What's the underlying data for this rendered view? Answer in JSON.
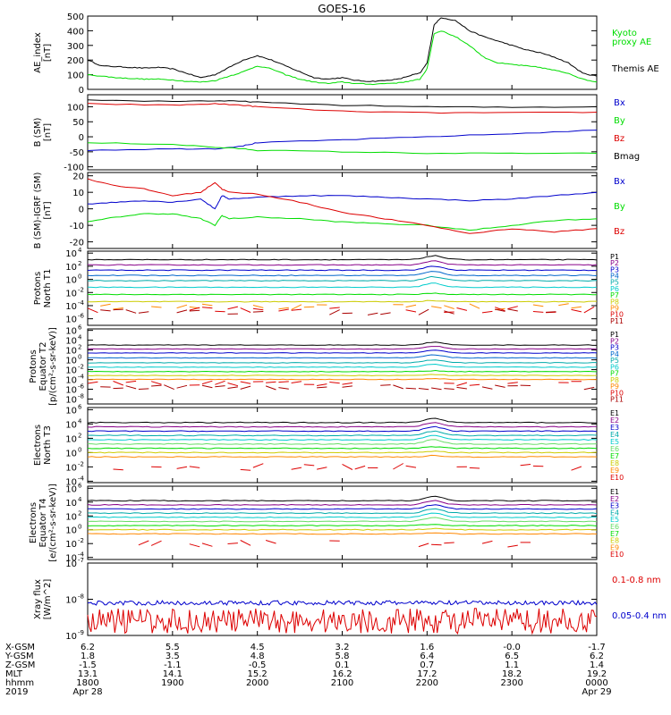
{
  "title": "GOES-16",
  "colors": {
    "black": "#000000",
    "green": "#00dd00",
    "blue": "#0000cc",
    "red": "#dd0000",
    "purple": "#880088",
    "cyan": "#00cccc",
    "yellow": "#cccc00",
    "orange": "#ff8800",
    "lightgreen": "#66dd66",
    "teal": "#00aaaa"
  },
  "chart_data": [
    {
      "type": "line",
      "ylabel": "AE_index [nT]",
      "ylabel_lines": [
        "AE_index",
        "[nT]"
      ],
      "ylim": [
        0,
        500
      ],
      "yticks": [
        0,
        100,
        200,
        300,
        400,
        500
      ],
      "ytick_labels": [
        "0",
        "100",
        "200",
        "300",
        "400",
        "500"
      ],
      "series": [
        {
          "name": "Themis AE",
          "color": "#000000",
          "x": [
            1800,
            1810,
            1820,
            1830,
            1840,
            1850,
            1900,
            1910,
            1920,
            1930,
            1940,
            1950,
            2000,
            2010,
            2020,
            2030,
            2040,
            2050,
            2100,
            2110,
            2120,
            2130,
            2140,
            2150,
            2155,
            2200,
            2205,
            2210,
            2220,
            2230,
            2240,
            2250,
            2300,
            2310,
            2320,
            2330,
            2340,
            2350,
            2400
          ],
          "values": [
            200,
            160,
            155,
            150,
            145,
            150,
            140,
            110,
            80,
            100,
            150,
            200,
            230,
            200,
            160,
            120,
            80,
            70,
            80,
            60,
            55,
            60,
            70,
            100,
            110,
            180,
            440,
            490,
            470,
            400,
            360,
            330,
            300,
            270,
            250,
            220,
            180,
            110,
            90
          ]
        },
        {
          "name": "Kyoto proxy AE",
          "color": "#00dd00",
          "x": [
            1800,
            1810,
            1820,
            1830,
            1840,
            1850,
            1900,
            1910,
            1920,
            1930,
            1940,
            1950,
            2000,
            2010,
            2020,
            2030,
            2040,
            2050,
            2100,
            2110,
            2120,
            2130,
            2140,
            2150,
            2155,
            2200,
            2205,
            2210,
            2220,
            2230,
            2240,
            2250,
            2300,
            2310,
            2320,
            2330,
            2340,
            2350,
            2400
          ],
          "values": [
            100,
            90,
            80,
            75,
            70,
            70,
            65,
            55,
            50,
            60,
            90,
            120,
            160,
            140,
            100,
            70,
            50,
            40,
            50,
            40,
            35,
            40,
            45,
            60,
            70,
            140,
            380,
            400,
            360,
            300,
            220,
            180,
            170,
            160,
            150,
            130,
            110,
            70,
            50
          ]
        }
      ],
      "legend": [
        {
          "text": "Kyoto",
          "color": "#00dd00"
        },
        {
          "text": "proxy AE",
          "color": "#00dd00"
        },
        {
          "text": "Themis AE",
          "color": "#000000"
        }
      ]
    },
    {
      "type": "line",
      "ylabel": "B (SM) [nT]",
      "ylabel_lines": [
        "B (SM)",
        "[nT]"
      ],
      "ylim": [
        -110,
        140
      ],
      "yticks": [
        -100,
        -50,
        0,
        50,
        100
      ],
      "ytick_labels": [
        "-100",
        "-50",
        "0",
        "50",
        "100"
      ],
      "series": [
        {
          "name": "Bx",
          "color": "#0000cc",
          "x": [
            1800,
            1900,
            1930,
            1950,
            2000,
            2100,
            2200,
            2300,
            2400
          ],
          "values": [
            -45,
            -40,
            -40,
            -30,
            -20,
            -10,
            0,
            10,
            22
          ]
        },
        {
          "name": "By",
          "color": "#00dd00",
          "x": [
            1800,
            1900,
            1930,
            1950,
            2000,
            2100,
            2200,
            2300,
            2400
          ],
          "values": [
            -20,
            -25,
            -35,
            -40,
            -45,
            -50,
            -55,
            -55,
            -55
          ]
        },
        {
          "name": "Bz",
          "color": "#dd0000",
          "x": [
            1800,
            1900,
            1930,
            1950,
            2000,
            2100,
            2200,
            2300,
            2400
          ],
          "values": [
            110,
            105,
            110,
            105,
            100,
            85,
            80,
            80,
            82
          ]
        },
        {
          "name": "Bmag",
          "color": "#000000",
          "x": [
            1800,
            1900,
            1930,
            1950,
            2000,
            2100,
            2200,
            2300,
            2400
          ],
          "values": [
            122,
            118,
            120,
            118,
            115,
            105,
            100,
            98,
            100
          ]
        }
      ],
      "legend": [
        {
          "text": "Bx",
          "color": "#0000cc"
        },
        {
          "text": "By",
          "color": "#00dd00"
        },
        {
          "text": "Bz",
          "color": "#dd0000"
        },
        {
          "text": "Bmag",
          "color": "#000000"
        }
      ]
    },
    {
      "type": "line",
      "ylabel": "B (SM)-IGRF (SM) [nT]",
      "ylabel_lines": [
        "B (SM)-IGRF (SM)",
        "[nT]"
      ],
      "ylim": [
        -24,
        22
      ],
      "yticks": [
        -20,
        -10,
        0,
        10,
        20
      ],
      "ytick_labels": [
        "-20",
        "-10",
        "0",
        "10",
        "20"
      ],
      "series": [
        {
          "name": "Bx",
          "color": "#0000cc",
          "x": [
            1800,
            1820,
            1840,
            1900,
            1920,
            1930,
            1935,
            1940,
            2000,
            2030,
            2100,
            2130,
            2200,
            2230,
            2300,
            2330,
            2400
          ],
          "values": [
            3,
            4,
            5,
            4,
            6,
            0,
            8,
            6,
            7,
            8,
            8,
            7,
            6,
            5,
            6,
            8,
            10
          ]
        },
        {
          "name": "By",
          "color": "#00dd00",
          "x": [
            1800,
            1820,
            1840,
            1900,
            1920,
            1930,
            1935,
            1940,
            2000,
            2030,
            2100,
            2130,
            2200,
            2230,
            2300,
            2330,
            2400
          ],
          "values": [
            -8,
            -5,
            -3,
            -3,
            -6,
            -10,
            -4,
            -6,
            -5,
            -6,
            -8,
            -9,
            -10,
            -13,
            -10,
            -7,
            -6
          ]
        },
        {
          "name": "Bz",
          "color": "#dd0000",
          "x": [
            1800,
            1820,
            1840,
            1900,
            1920,
            1930,
            1935,
            1940,
            2000,
            2030,
            2100,
            2130,
            2200,
            2230,
            2300,
            2330,
            2400
          ],
          "values": [
            18,
            14,
            12,
            8,
            10,
            16,
            12,
            10,
            9,
            4,
            -2,
            -6,
            -10,
            -15,
            -12,
            -14,
            -12
          ]
        }
      ],
      "legend": [
        {
          "text": "Bx",
          "color": "#0000cc"
        },
        {
          "text": "By",
          "color": "#00dd00"
        },
        {
          "text": "Bz",
          "color": "#dd0000"
        }
      ]
    },
    {
      "type": "line",
      "scale": "log",
      "ylabel": "Protons North T1",
      "ylabel_lines": [
        "Protons",
        "North T1"
      ],
      "ylim_exp": [
        -7,
        4.3
      ],
      "yticks_exp": [
        -6,
        -4,
        -2,
        0,
        2,
        4
      ],
      "ytick_labels": [
        "10",
        "10",
        "10",
        "10",
        "10",
        "10"
      ],
      "ytick_exps": [
        "-6",
        "-4",
        "-2",
        "0",
        "2",
        "4"
      ],
      "channels": [
        {
          "name": "P1",
          "color": "#000000",
          "level_exp": 3.0
        },
        {
          "name": "P2",
          "color": "#880088",
          "level_exp": 2.2
        },
        {
          "name": "P3",
          "color": "#0000cc",
          "level_exp": 1.4
        },
        {
          "name": "P4",
          "color": "#0066cc",
          "level_exp": 0.6
        },
        {
          "name": "P5",
          "color": "#00aaaa",
          "level_exp": -0.2
        },
        {
          "name": "P6",
          "color": "#00cccc",
          "level_exp": -1.2
        },
        {
          "name": "P7",
          "color": "#00dd00",
          "level_exp": -2.3
        },
        {
          "name": "P8",
          "color": "#cccc00",
          "level_exp": -3.4
        },
        {
          "name": "P9",
          "color": "#ff8800",
          "level_exp": -4.2
        },
        {
          "name": "P10",
          "color": "#dd0000",
          "level_exp": -4.6
        },
        {
          "name": "P11",
          "color": "#aa0000",
          "level_exp": -5.0
        }
      ]
    },
    {
      "type": "line",
      "scale": "log",
      "ylabel": "Protons Equator T2 [p/(cm²-s-sr-keV)]",
      "ylabel_lines": [
        "Protons",
        "Equator T2",
        "[p/(cm²-s-sr-keV)]"
      ],
      "ylim_exp": [
        -9,
        6.3
      ],
      "yticks_exp": [
        -8,
        -6,
        -4,
        -2,
        0,
        2,
        4,
        6
      ],
      "ytick_labels": [
        "10",
        "10",
        "10",
        "10",
        "10",
        "10",
        "10",
        "10"
      ],
      "ytick_exps": [
        "-8",
        "-6",
        "-4",
        "-2",
        "0",
        "2",
        "4",
        "6"
      ],
      "channels": [
        {
          "name": "P1",
          "color": "#000000",
          "level_exp": 3.0
        },
        {
          "name": "P2",
          "color": "#880088",
          "level_exp": 2.2
        },
        {
          "name": "P3",
          "color": "#0000cc",
          "level_exp": 1.4
        },
        {
          "name": "P4",
          "color": "#0066cc",
          "level_exp": 0.4
        },
        {
          "name": "P5",
          "color": "#00aaaa",
          "level_exp": -0.6
        },
        {
          "name": "P6",
          "color": "#00cccc",
          "level_exp": -1.5
        },
        {
          "name": "P7",
          "color": "#00dd00",
          "level_exp": -2.4
        },
        {
          "name": "P8",
          "color": "#cccc00",
          "level_exp": -3.2
        },
        {
          "name": "P9",
          "color": "#ff8800",
          "level_exp": -4.0
        },
        {
          "name": "P10",
          "color": "#dd0000",
          "level_exp": -4.8
        },
        {
          "name": "P11",
          "color": "#aa0000",
          "level_exp": -5.6
        }
      ]
    },
    {
      "type": "line",
      "scale": "log",
      "ylabel": "Electrons North T3",
      "ylabel_lines": [
        "Electrons",
        "North T3"
      ],
      "ylim_exp": [
        -4.2,
        6.3
      ],
      "yticks_exp": [
        -4,
        -2,
        0,
        2,
        4,
        6
      ],
      "ytick_labels": [
        "10",
        "10",
        "10",
        "10",
        "10",
        "10"
      ],
      "ytick_exps": [
        "-4",
        "-2",
        "0",
        "2",
        "4",
        "6"
      ],
      "channels": [
        {
          "name": "E1",
          "color": "#000000",
          "level_exp": 4.2
        },
        {
          "name": "E2",
          "color": "#880088",
          "level_exp": 3.6
        },
        {
          "name": "E3",
          "color": "#0000cc",
          "level_exp": 3.0
        },
        {
          "name": "E4",
          "color": "#00aaaa",
          "level_exp": 2.4
        },
        {
          "name": "E5",
          "color": "#00cccc",
          "level_exp": 1.8
        },
        {
          "name": "E6",
          "color": "#66dd66",
          "level_exp": 1.2
        },
        {
          "name": "E7",
          "color": "#00dd00",
          "level_exp": 0.6
        },
        {
          "name": "E8",
          "color": "#cccc00",
          "level_exp": 0.0
        },
        {
          "name": "E9",
          "color": "#ff8800",
          "level_exp": -0.6
        },
        {
          "name": "E10",
          "color": "#dd0000",
          "level_exp": -2.0
        }
      ]
    },
    {
      "type": "line",
      "scale": "log",
      "ylabel": "Electrons Equator T4 [e/(cm²-s-sr-keV)]",
      "ylabel_lines": [
        "Electrons",
        "Equator T4",
        "[e/(cm²-s-sr-keV)]"
      ],
      "ylim_exp": [
        -4.3,
        6.3
      ],
      "yticks_exp": [
        -4,
        -2,
        0,
        2,
        4,
        6
      ],
      "ytick_labels": [
        "10",
        "10",
        "10",
        "10",
        "10",
        "10"
      ],
      "ytick_exps": [
        "-4",
        "-2",
        "0",
        "2",
        "4",
        "6"
      ],
      "channels": [
        {
          "name": "E1",
          "color": "#000000",
          "level_exp": 4.2
        },
        {
          "name": "E2",
          "color": "#880088",
          "level_exp": 3.6
        },
        {
          "name": "E3",
          "color": "#0000cc",
          "level_exp": 3.0
        },
        {
          "name": "E4",
          "color": "#00aaaa",
          "level_exp": 2.4
        },
        {
          "name": "E5",
          "color": "#00cccc",
          "level_exp": 1.8
        },
        {
          "name": "E6",
          "color": "#66dd66",
          "level_exp": 1.2
        },
        {
          "name": "E7",
          "color": "#00dd00",
          "level_exp": 0.6
        },
        {
          "name": "E8",
          "color": "#cccc00",
          "level_exp": 0.0
        },
        {
          "name": "E9",
          "color": "#ff8800",
          "level_exp": -0.6
        },
        {
          "name": "E10",
          "color": "#dd0000",
          "level_exp": -2.0
        }
      ]
    },
    {
      "type": "line",
      "scale": "log",
      "ylabel": "Xray flux [W/m^2]",
      "ylabel_lines": [
        "Xray flux",
        "[W/m^2]"
      ],
      "ylim_exp": [
        -9,
        -7
      ],
      "yticks_exp": [
        -9,
        -8,
        -7
      ],
      "ytick_labels": [
        "10",
        "10",
        "10"
      ],
      "ytick_exps": [
        "-9",
        "-8",
        "-7"
      ],
      "series": [
        {
          "name": "0.1-0.8 nm",
          "color": "#dd0000",
          "level_exp": -8.6
        },
        {
          "name": "0.05-0.4 nm",
          "color": "#0000cc",
          "level_exp": -8.1
        }
      ]
    }
  ],
  "x_axis": {
    "range": [
      1800,
      2400
    ],
    "ticks": [
      1800,
      1900,
      2000,
      2100,
      2200,
      2300,
      2400
    ],
    "rows": [
      {
        "label": "X-GSM",
        "values": [
          "6.2",
          "5.5",
          "4.5",
          "3.2",
          "1.6",
          "-0.0",
          "-1.7"
        ]
      },
      {
        "label": "Y-GSM",
        "values": [
          "1.8",
          "3.5",
          "4.8",
          "5.8",
          "6.4",
          "6.5",
          "6.2"
        ]
      },
      {
        "label": "Z-GSM",
        "values": [
          "-1.5",
          "-1.1",
          "-0.5",
          "0.1",
          "0.7",
          "1.1",
          "1.4"
        ]
      },
      {
        "label": "MLT",
        "values": [
          "13.1",
          "14.1",
          "15.2",
          "16.2",
          "17.2",
          "18.2",
          "19.2"
        ]
      },
      {
        "label": "hhmm",
        "values": [
          "1800",
          "1900",
          "2000",
          "2100",
          "2200",
          "2300",
          "0000"
        ]
      },
      {
        "label": "2019",
        "values": [
          "Apr 28",
          "",
          "",
          "",
          "",
          "",
          "Apr 29"
        ]
      }
    ]
  }
}
